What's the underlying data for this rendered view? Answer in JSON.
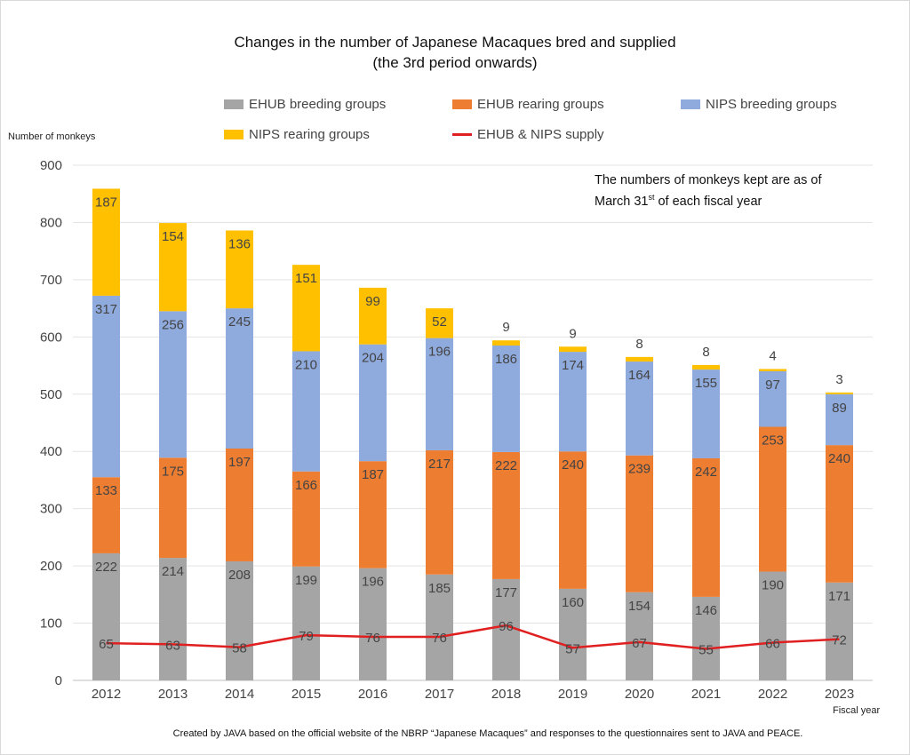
{
  "chart_data": {
    "type": "bar",
    "title_line1": "Changes in the number of Japanese Macaques bred and supplied",
    "title_line2": "(the 3rd period onwards)",
    "ylabel": "Number of monkeys",
    "xlabel": "Fiscal year",
    "ylim": [
      0,
      900
    ],
    "yticks": [
      0,
      100,
      200,
      300,
      400,
      500,
      600,
      700,
      800,
      900
    ],
    "grid": true,
    "legend_position": "top",
    "categories": [
      "2012",
      "2013",
      "2014",
      "2015",
      "2016",
      "2017",
      "2018",
      "2019",
      "2020",
      "2021",
      "2022",
      "2023"
    ],
    "series": [
      {
        "name": "EHUB breeding groups",
        "color": "#a5a5a5",
        "values": [
          222,
          214,
          208,
          199,
          196,
          185,
          177,
          160,
          154,
          146,
          190,
          171
        ]
      },
      {
        "name": "EHUB rearing groups",
        "color": "#ed7d31",
        "values": [
          133,
          175,
          197,
          166,
          187,
          217,
          222,
          240,
          239,
          242,
          253,
          240
        ]
      },
      {
        "name": "NIPS breeding groups",
        "color": "#8faadc",
        "values": [
          317,
          256,
          245,
          210,
          204,
          196,
          186,
          174,
          164,
          155,
          97,
          89
        ]
      },
      {
        "name": "NIPS rearing groups",
        "color": "#ffc000",
        "values": [
          187,
          154,
          136,
          151,
          99,
          52,
          9,
          9,
          8,
          8,
          4,
          3
        ]
      }
    ],
    "line_series": {
      "name": "EHUB & NIPS supply",
      "color": "#e02020",
      "values": [
        65,
        63,
        58,
        79,
        76,
        76,
        96,
        57,
        67,
        55,
        66,
        72
      ]
    },
    "note_line1": "The numbers of monkeys kept are as of",
    "note_line2_a": "March 31",
    "note_line2_sup": "st",
    "note_line2_b": " of each fiscal year",
    "source": "Created by JAVA based on the official website of the NBRP “Japanese Macaques” and responses to the questionnaires sent to JAVA and PEACE."
  }
}
